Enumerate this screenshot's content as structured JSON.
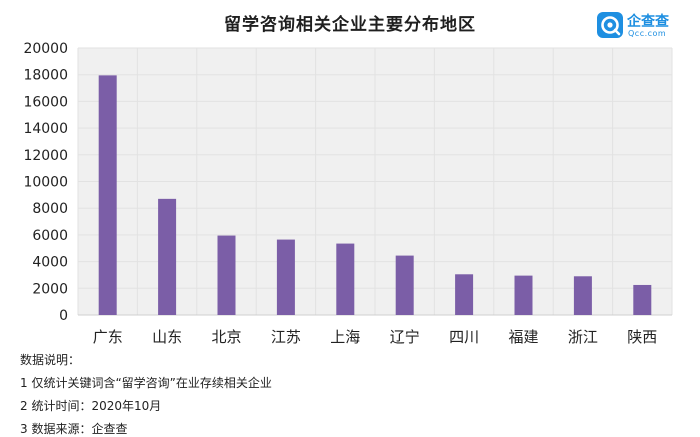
{
  "chart_data": {
    "type": "bar",
    "title": "留学咨询相关企业主要分布地区",
    "categories": [
      "广东",
      "山东",
      "北京",
      "江苏",
      "上海",
      "辽宁",
      "四川",
      "福建",
      "浙江",
      "陕西"
    ],
    "values": [
      17950,
      8700,
      5950,
      5650,
      5350,
      4450,
      3050,
      2950,
      2900,
      2250
    ],
    "ylim": [
      0,
      20000
    ],
    "yticks": [
      "0",
      "2000",
      "4000",
      "6000",
      "8000",
      "10000",
      "12000",
      "14000",
      "16000",
      "18000",
      "20000"
    ],
    "grid": true,
    "bar_color": "#7b5ea7",
    "plot_background": "#f0f0f0"
  },
  "logo": {
    "name": "企查查",
    "domain": "Qcc.com",
    "color": "#1e8fe1"
  },
  "notes": {
    "heading": "数据说明：",
    "line1": "1 仅统计关键词含“留学咨询”在业存续相关企业",
    "line2": "2 统计时间：2020年10月",
    "line3": "3 数据来源：企查查"
  }
}
